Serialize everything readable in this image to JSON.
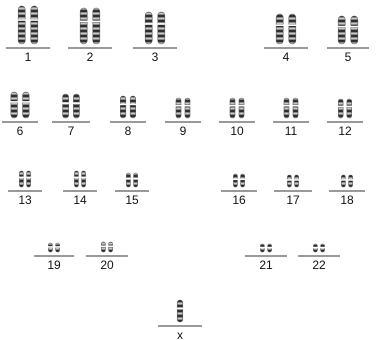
{
  "karyotype": {
    "labels": [
      "1",
      "2",
      "3",
      "4",
      "5",
      "6",
      "7",
      "8",
      "9",
      "10",
      "11",
      "12",
      "13",
      "14",
      "15",
      "16",
      "17",
      "18",
      "19",
      "20",
      "21",
      "22",
      "x"
    ]
  }
}
